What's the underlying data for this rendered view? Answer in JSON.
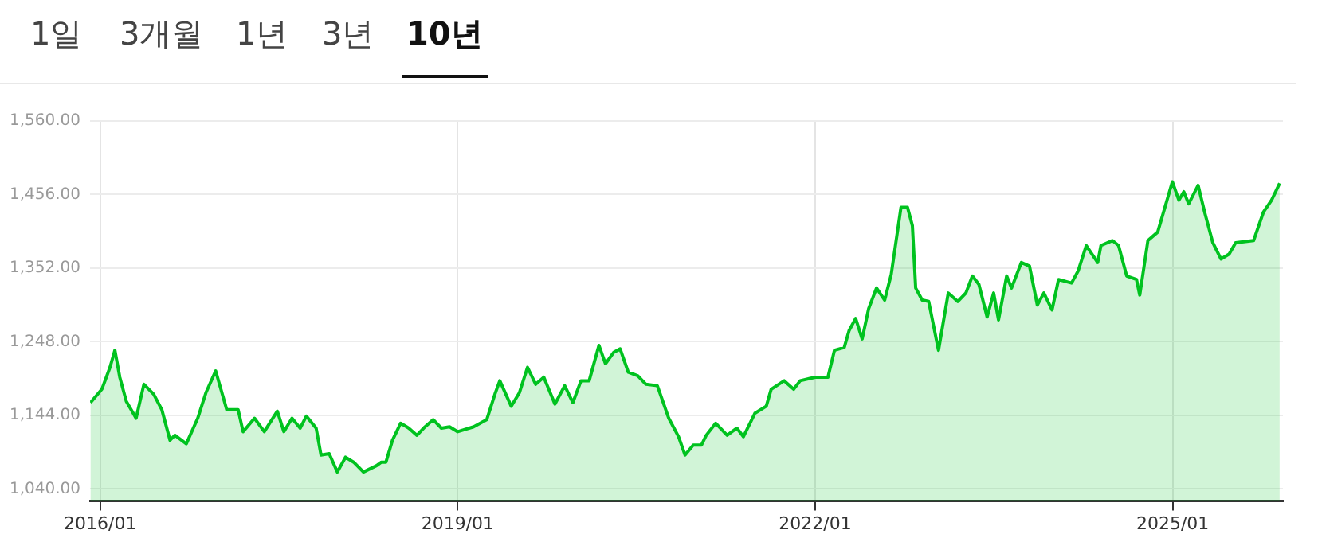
{
  "chart_data": {
    "type": "area",
    "annotations": [
      "1일",
      "3개월",
      "1년",
      "3년",
      "10년"
    ],
    "x": [
      "2015-12-02",
      "2016-01-06",
      "2016-01-31",
      "2016-02-15",
      "2016-03-01",
      "2016-03-21",
      "2016-04-20",
      "2016-05-14",
      "2016-06-13",
      "2016-07-08",
      "2016-08-02",
      "2016-08-17",
      "2016-09-21",
      "2016-10-26",
      "2016-11-20",
      "2016-12-20",
      "2017-01-23",
      "2017-02-27",
      "2017-03-14",
      "2017-04-18",
      "2017-05-18",
      "2017-06-27",
      "2017-07-17",
      "2017-08-11",
      "2017-09-05",
      "2017-09-24",
      "2017-10-24",
      "2017-11-08",
      "2017-12-03",
      "2017-12-28",
      "2018-01-22",
      "2018-02-16",
      "2018-03-18",
      "2018-04-27",
      "2018-05-12",
      "2018-05-26",
      "2018-06-15",
      "2018-07-10",
      "2018-08-04",
      "2018-08-29",
      "2018-09-23",
      "2018-10-18",
      "2018-11-12",
      "2018-12-07",
      "2019-01-01",
      "2019-02-19",
      "2019-03-31",
      "2019-04-25",
      "2019-05-10",
      "2019-06-14",
      "2019-07-09",
      "2019-08-03",
      "2019-08-28",
      "2019-09-22",
      "2019-10-26",
      "2019-11-25",
      "2019-12-20",
      "2020-01-14",
      "2020-02-08",
      "2020-03-09",
      "2020-03-29",
      "2020-04-23",
      "2020-05-13",
      "2020-06-07",
      "2020-07-06",
      "2020-07-31",
      "2020-09-04",
      "2020-10-09",
      "2020-11-08",
      "2020-11-28",
      "2020-12-23",
      "2021-01-17",
      "2021-02-01",
      "2021-03-02",
      "2021-04-06",
      "2021-05-06",
      "2021-05-26",
      "2021-06-30",
      "2021-08-04",
      "2021-08-19",
      "2021-09-28",
      "2021-10-27",
      "2021-11-16",
      "2022-01-01",
      "2022-01-15",
      "2022-02-09",
      "2022-03-01",
      "2022-03-31",
      "2022-04-15",
      "2022-05-05",
      "2022-05-25",
      "2022-06-14",
      "2022-07-08",
      "2022-08-02",
      "2022-08-22",
      "2022-09-21",
      "2022-10-11",
      "2022-10-26",
      "2022-11-05",
      "2022-11-25",
      "2022-12-15",
      "2023-01-14",
      "2023-02-13",
      "2023-03-14",
      "2023-04-08",
      "2023-04-28",
      "2023-05-18",
      "2023-06-12",
      "2023-07-02",
      "2023-07-17",
      "2023-08-11",
      "2023-08-26",
      "2023-09-25",
      "2023-10-20",
      "2023-11-13",
      "2023-12-03",
      "2023-12-28",
      "2024-01-17",
      "2024-02-26",
      "2024-03-17",
      "2024-04-11",
      "2024-05-16",
      "2024-05-26",
      "2024-06-30",
      "2024-07-19",
      "2024-08-13",
      "2024-09-12",
      "2024-09-22",
      "2024-10-17",
      "2024-11-16",
      "2024-12-31",
      "2025-01-20",
      "2025-02-04",
      "2025-02-19",
      "2025-03-20",
      "2025-04-09",
      "2025-05-04",
      "2025-05-29",
      "2025-06-23",
      "2025-07-13",
      "2025-09-06",
      "2025-10-06",
      "2025-10-31",
      "2025-11-25"
    ],
    "series": [
      {
        "color": "#00c21f",
        "values": [
          1162,
          1181,
          1212,
          1236,
          1198,
          1164,
          1140,
          1188,
          1174,
          1152,
          1109,
          1116,
          1104,
          1140,
          1176,
          1207,
          1152,
          1152,
          1121,
          1140,
          1121,
          1150,
          1121,
          1140,
          1126,
          1143,
          1126,
          1088,
          1090,
          1064,
          1085,
          1078,
          1064,
          1073,
          1078,
          1078,
          1109,
          1133,
          1126,
          1116,
          1128,
          1138,
          1126,
          1128,
          1121,
          1128,
          1138,
          1174,
          1193,
          1157,
          1176,
          1212,
          1188,
          1198,
          1160,
          1186,
          1162,
          1193,
          1193,
          1243,
          1217,
          1233,
          1238,
          1205,
          1200,
          1188,
          1186,
          1140,
          1114,
          1088,
          1102,
          1102,
          1116,
          1133,
          1116,
          1126,
          1114,
          1147,
          1157,
          1181,
          1193,
          1181,
          1193,
          1198,
          1198,
          1198,
          1236,
          1240,
          1264,
          1281,
          1252,
          1295,
          1324,
          1307,
          1343,
          1438,
          1438,
          1412,
          1324,
          1307,
          1305,
          1236,
          1317,
          1305,
          1317,
          1341,
          1329,
          1283,
          1317,
          1279,
          1341,
          1324,
          1360,
          1355,
          1300,
          1317,
          1293,
          1336,
          1331,
          1348,
          1384,
          1360,
          1384,
          1391,
          1384,
          1341,
          1336,
          1314,
          1391,
          1403,
          1474,
          1448,
          1460,
          1443,
          1469,
          1431,
          1388,
          1365,
          1372,
          1388,
          1391,
          1431,
          1448,
          1472
        ]
      }
    ],
    "xlim": [
      "2015-12-01",
      "2025-12-05"
    ],
    "xticks": [
      {
        "value": "2016-01",
        "label": "2016/01"
      },
      {
        "value": "2019-01",
        "label": "2019/01"
      },
      {
        "value": "2022-01",
        "label": "2022/01"
      },
      {
        "value": "2025-01",
        "label": "2025/01"
      }
    ],
    "ylim": [
      1023,
      1560
    ],
    "yticks": [
      {
        "value": 1040,
        "label": "1,040.00"
      },
      {
        "value": 1144,
        "label": "1,144.00"
      },
      {
        "value": 1248,
        "label": "1,248.00"
      },
      {
        "value": 1352,
        "label": "1,352.00"
      },
      {
        "value": 1456,
        "label": "1,456.00"
      },
      {
        "value": 1560,
        "label": "1,560.00"
      }
    ],
    "grid": true,
    "legend": false,
    "marker": "none",
    "line_style": "solid"
  }
}
